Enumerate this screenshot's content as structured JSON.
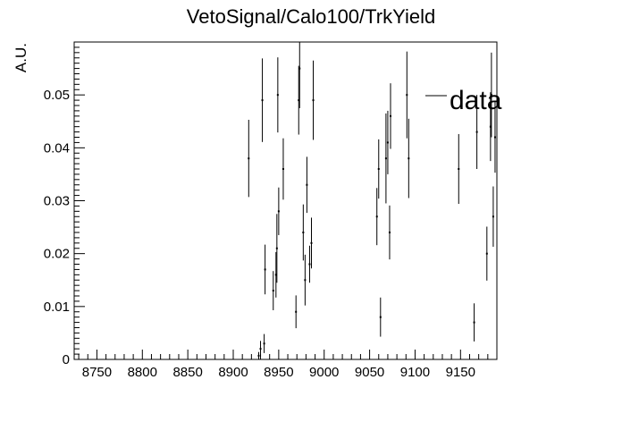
{
  "chart_data": {
    "type": "scatter",
    "title": "VetoSignal/Calo100/TrkYield",
    "xlabel": "",
    "ylabel": "A.U.",
    "xlim": [
      8725,
      9190
    ],
    "ylim": [
      0,
      0.06
    ],
    "x_ticks": [
      8750,
      8800,
      8850,
      8900,
      8950,
      9000,
      9050,
      9100,
      9150
    ],
    "x_tick_labels": [
      "8750",
      "8800",
      "8850",
      "8900",
      "8950",
      "9000",
      "9050",
      "9100",
      "9150"
    ],
    "y_ticks": [
      0,
      0.01,
      0.02,
      0.03,
      0.04,
      0.05
    ],
    "y_tick_labels": [
      "0",
      "0.01",
      "0.02",
      "0.03",
      "0.04",
      "0.05"
    ],
    "grid": false,
    "legend": {
      "placement": "top-right",
      "entries": [
        "data"
      ]
    },
    "series": [
      {
        "name": "data",
        "points": [
          {
            "x": 8917,
            "y": 0.038,
            "err": 0.0073
          },
          {
            "x": 8928,
            "y": 0.0007,
            "err": 0.0007
          },
          {
            "x": 8930,
            "y": 0.002,
            "err": 0.0015
          },
          {
            "x": 8932,
            "y": 0.049,
            "err": 0.0079
          },
          {
            "x": 8934,
            "y": 0.003,
            "err": 0.0018
          },
          {
            "x": 8935,
            "y": 0.017,
            "err": 0.0047
          },
          {
            "x": 8944,
            "y": 0.013,
            "err": 0.0037
          },
          {
            "x": 8947,
            "y": 0.016,
            "err": 0.0043
          },
          {
            "x": 8948,
            "y": 0.021,
            "err": 0.0065
          },
          {
            "x": 8949,
            "y": 0.05,
            "err": 0.0071
          },
          {
            "x": 8950,
            "y": 0.028,
            "err": 0.0045
          },
          {
            "x": 8955,
            "y": 0.036,
            "err": 0.0058
          },
          {
            "x": 8969,
            "y": 0.009,
            "err": 0.0031
          },
          {
            "x": 8972,
            "y": 0.049,
            "err": 0.0065
          },
          {
            "x": 8973,
            "y": 0.055,
            "err": 0.0075
          },
          {
            "x": 8977,
            "y": 0.024,
            "err": 0.0053
          },
          {
            "x": 8979,
            "y": 0.015,
            "err": 0.0048
          },
          {
            "x": 8981,
            "y": 0.033,
            "err": 0.0053
          },
          {
            "x": 8984,
            "y": 0.018,
            "err": 0.0035
          },
          {
            "x": 8986,
            "y": 0.022,
            "err": 0.0048
          },
          {
            "x": 8988,
            "y": 0.049,
            "err": 0.0075
          },
          {
            "x": 9058,
            "y": 0.027,
            "err": 0.0054
          },
          {
            "x": 9060,
            "y": 0.036,
            "err": 0.0056
          },
          {
            "x": 9062,
            "y": 0.008,
            "err": 0.0037
          },
          {
            "x": 9068,
            "y": 0.038,
            "err": 0.0085
          },
          {
            "x": 9070,
            "y": 0.041,
            "err": 0.006
          },
          {
            "x": 9072,
            "y": 0.024,
            "err": 0.0051
          },
          {
            "x": 9073,
            "y": 0.046,
            "err": 0.0062
          },
          {
            "x": 9091,
            "y": 0.05,
            "err": 0.0082
          },
          {
            "x": 9093,
            "y": 0.038,
            "err": 0.0075
          },
          {
            "x": 9148,
            "y": 0.036,
            "err": 0.0066
          },
          {
            "x": 9165,
            "y": 0.007,
            "err": 0.0036
          },
          {
            "x": 9168,
            "y": 0.043,
            "err": 0.007
          },
          {
            "x": 9179,
            "y": 0.02,
            "err": 0.0051
          },
          {
            "x": 9183,
            "y": 0.044,
            "err": 0.0065
          },
          {
            "x": 9184,
            "y": 0.05,
            "err": 0.008
          },
          {
            "x": 9186,
            "y": 0.027,
            "err": 0.0057
          },
          {
            "x": 9188,
            "y": 0.042,
            "err": 0.0067
          }
        ]
      }
    ]
  }
}
